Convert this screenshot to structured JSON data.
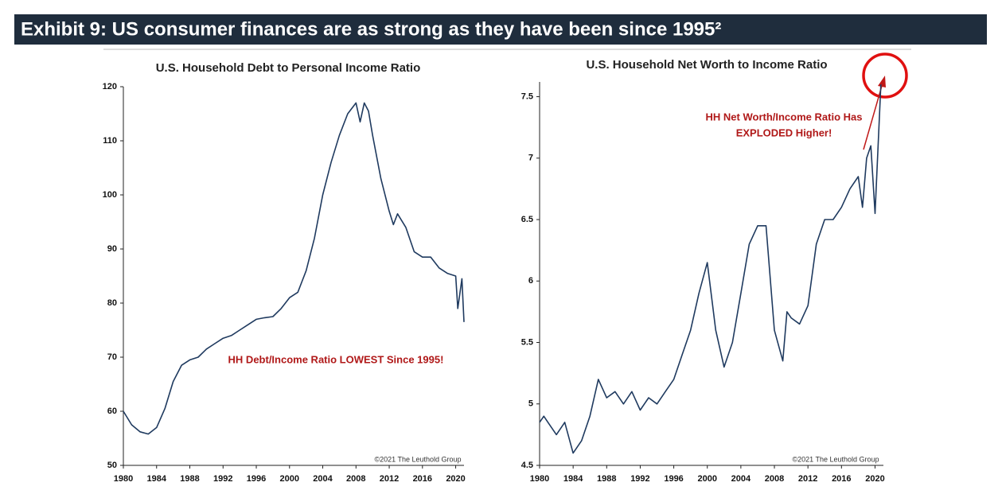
{
  "header": {
    "title": "Exhibit 9: US consumer finances are as strong as they have been since 1995²"
  },
  "chart_data": [
    {
      "type": "line",
      "title": "U.S. Household Debt to Personal Income Ratio",
      "x": [
        1980,
        1981,
        1982,
        1983,
        1984,
        1985,
        1986,
        1987,
        1988,
        1989,
        1990,
        1991,
        1992,
        1993,
        1994,
        1995,
        1996,
        1997,
        1998,
        1999,
        2000,
        2001,
        2002,
        2003,
        2004,
        2005,
        2006,
        2007,
        2008,
        2008.5,
        2009,
        2009.5,
        2010,
        2011,
        2012,
        2012.5,
        2013,
        2014,
        2015,
        2016,
        2017,
        2018,
        2019,
        2020,
        2020.25,
        2020.75,
        2021
      ],
      "values": [
        60,
        57.5,
        56.2,
        55.8,
        57,
        60.5,
        65.5,
        68.5,
        69.5,
        70,
        71.5,
        72.5,
        73.5,
        74,
        75,
        76,
        77,
        77.3,
        77.5,
        79,
        81,
        82,
        86,
        92,
        100,
        106,
        111,
        115,
        117,
        113.5,
        117,
        115.5,
        111,
        103,
        97,
        94.5,
        96.5,
        94,
        89.5,
        88.5,
        88.5,
        86.5,
        85.5,
        85,
        79,
        84.5,
        76.5
      ],
      "color": "#1f3a5f",
      "xlim": [
        1980,
        2021
      ],
      "xticks": [
        1980,
        1984,
        1988,
        1992,
        1996,
        2000,
        2004,
        2008,
        2012,
        2016,
        2020
      ],
      "ylim": [
        50,
        120
      ],
      "yticks": [
        50,
        60,
        70,
        80,
        90,
        100,
        110,
        120
      ],
      "annotations": [
        "HH Debt/Income Ratio LOWEST Since 1995!"
      ],
      "source": "©2021 The Leuthold Group"
    },
    {
      "type": "line",
      "title": "U.S. Household Net Worth to Income Ratio",
      "x": [
        1980,
        1980.5,
        1981,
        1982,
        1983,
        1984,
        1985,
        1986,
        1987,
        1988,
        1989,
        1990,
        1991,
        1992,
        1993,
        1994,
        1995,
        1996,
        1997,
        1998,
        1999,
        2000,
        2001,
        2002,
        2003,
        2004,
        2005,
        2006,
        2007,
        2008,
        2009,
        2009.5,
        2010,
        2011,
        2012,
        2013,
        2014,
        2015,
        2016,
        2017,
        2018,
        2018.5,
        2019,
        2019.5,
        2020,
        2020.7
      ],
      "values": [
        4.85,
        4.9,
        4.85,
        4.75,
        4.85,
        4.6,
        4.7,
        4.9,
        5.2,
        5.05,
        5.1,
        5.0,
        5.1,
        4.95,
        5.05,
        5.0,
        5.1,
        5.2,
        5.4,
        5.6,
        5.9,
        6.15,
        5.6,
        5.3,
        5.5,
        5.9,
        6.3,
        6.45,
        6.45,
        5.6,
        5.35,
        5.75,
        5.7,
        5.65,
        5.8,
        6.3,
        6.5,
        6.5,
        6.6,
        6.75,
        6.85,
        6.6,
        7.0,
        7.1,
        6.55,
        7.6
      ],
      "color": "#1f3a5f",
      "xlim": [
        1980,
        2021
      ],
      "xticks": [
        1980,
        1984,
        1988,
        1992,
        1996,
        2000,
        2004,
        2008,
        2012,
        2016,
        2020
      ],
      "ylim": [
        4.5,
        7.62
      ],
      "yticks": [
        4.5,
        5,
        5.5,
        6,
        6.5,
        7,
        7.5
      ],
      "annotations": [
        "HH Net Worth/Income Ratio Has",
        "EXPLODED Higher!"
      ],
      "source": "©2021 The Leuthold Group"
    }
  ]
}
